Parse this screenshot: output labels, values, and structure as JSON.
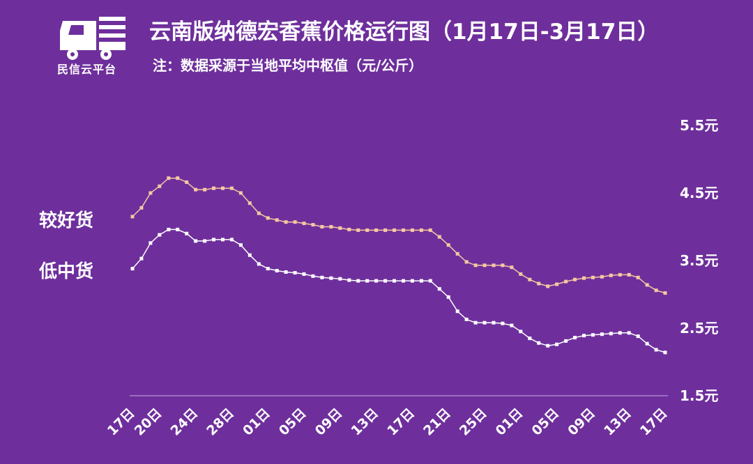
{
  "logo": {
    "text": "民信云平台"
  },
  "header": {
    "title": "云南版纳德宏香蕉价格运行图（1月17日-3月17日）",
    "subtitle": "注：数据采源于当地平均中枢值（元/公斤）"
  },
  "colors": {
    "background": "#6E2F9C",
    "good": "#F6C8A0",
    "low": "#FFFFFF",
    "axis": "#C9A8E0"
  },
  "chart_data": {
    "type": "line",
    "title": "云南版纳德宏香蕉价格运行图（1月17日-3月17日）",
    "ylabel": "元/公斤",
    "ylim": [
      1.5,
      5.5
    ],
    "yticks": [
      "5.5元",
      "4.5元",
      "3.5元",
      "2.5元",
      "1.5元"
    ],
    "xtick_labels": [
      "17日",
      "20日",
      "24日",
      "28日",
      "01日",
      "05日",
      "09日",
      "13日",
      "17日",
      "21日",
      "25日",
      "01日",
      "05日",
      "09日",
      "13日",
      "17日"
    ],
    "legend_placement": "left",
    "grid": false,
    "series": [
      {
        "name": "较好货",
        "values": [
          4.15,
          4.28,
          4.5,
          4.6,
          4.72,
          4.72,
          4.66,
          4.55,
          4.55,
          4.57,
          4.57,
          4.57,
          4.5,
          4.35,
          4.2,
          4.13,
          4.1,
          4.07,
          4.07,
          4.05,
          4.03,
          4.0,
          4.0,
          3.98,
          3.96,
          3.95,
          3.95,
          3.95,
          3.95,
          3.95,
          3.95,
          3.95,
          3.95,
          3.95,
          3.85,
          3.73,
          3.6,
          3.48,
          3.43,
          3.43,
          3.43,
          3.43,
          3.4,
          3.3,
          3.22,
          3.16,
          3.12,
          3.15,
          3.19,
          3.22,
          3.24,
          3.25,
          3.26,
          3.28,
          3.29,
          3.29,
          3.25,
          3.14,
          3.06,
          3.02
        ]
      },
      {
        "name": "低中货",
        "values": [
          3.38,
          3.53,
          3.76,
          3.88,
          3.96,
          3.96,
          3.9,
          3.79,
          3.79,
          3.81,
          3.81,
          3.81,
          3.73,
          3.58,
          3.45,
          3.38,
          3.35,
          3.33,
          3.32,
          3.3,
          3.27,
          3.25,
          3.24,
          3.23,
          3.21,
          3.2,
          3.2,
          3.2,
          3.2,
          3.2,
          3.2,
          3.2,
          3.2,
          3.2,
          3.08,
          2.96,
          2.75,
          2.63,
          2.58,
          2.58,
          2.58,
          2.57,
          2.54,
          2.45,
          2.35,
          2.28,
          2.24,
          2.26,
          2.31,
          2.36,
          2.39,
          2.4,
          2.41,
          2.42,
          2.43,
          2.43,
          2.38,
          2.27,
          2.18,
          2.14
        ]
      }
    ]
  }
}
